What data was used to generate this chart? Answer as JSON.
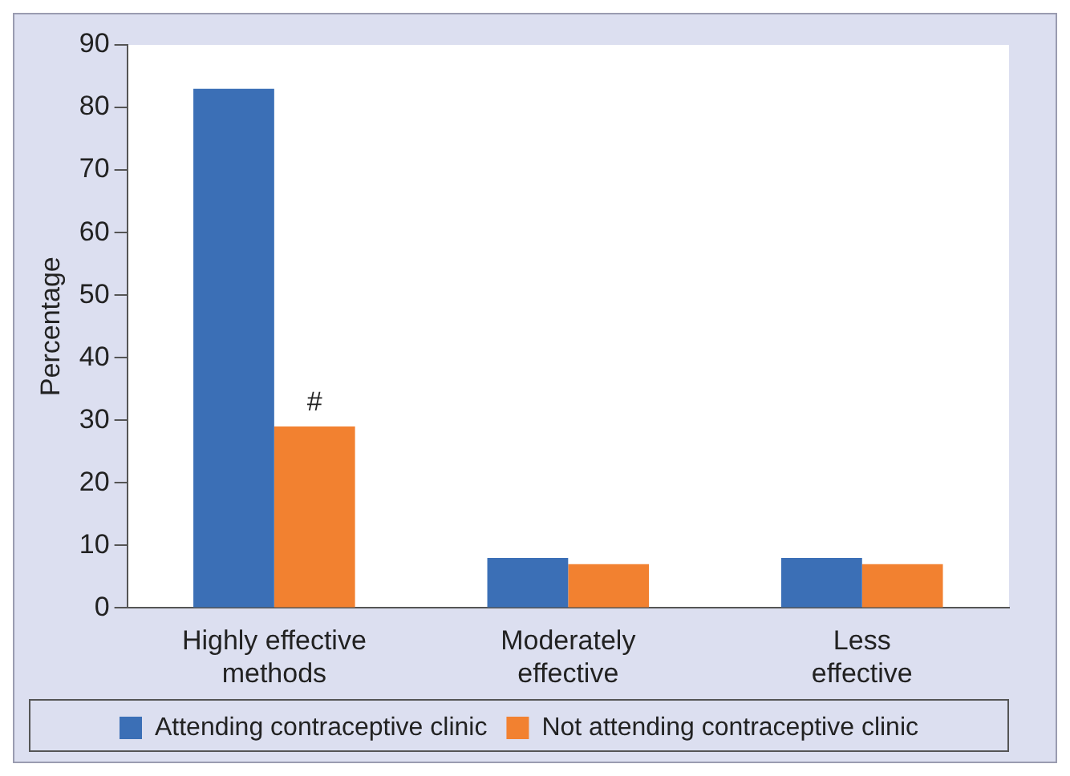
{
  "chart_data": {
    "type": "bar",
    "ylabel": "Percentage",
    "categories": [
      "Highly effective\nmethods",
      "Moderately\neffective",
      "Less\neffective"
    ],
    "series": [
      {
        "name": "Attending contraceptive clinic",
        "color": "#3b6fb6",
        "values": [
          83,
          8,
          8
        ]
      },
      {
        "name": "Not attending contraceptive clinic",
        "color": "#f28130",
        "values": [
          29,
          7,
          7
        ]
      }
    ],
    "ylim": [
      0,
      90
    ],
    "yticks": [
      0,
      10,
      20,
      30,
      40,
      50,
      60,
      70,
      80,
      90
    ],
    "grid": false,
    "legend": "bottom",
    "annotations": [
      {
        "text": "#",
        "x": "Highly effective\nmethods",
        "y": 29
      }
    ]
  }
}
